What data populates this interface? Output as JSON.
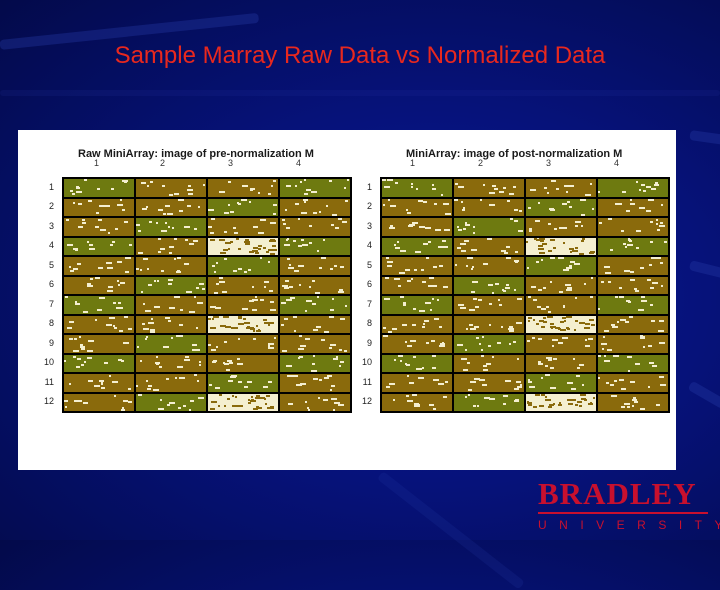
{
  "slide": {
    "title": "Sample Marray Raw Data vs Normalized Data"
  },
  "colors": {
    "background": "#06127a",
    "title": "#e8281e",
    "cell_base": "#8a6a0c",
    "cell_alt": "#6e7a10",
    "spot": "#f4efd0",
    "grid_line": "#000000",
    "logo": "#c8102e"
  },
  "plots": [
    {
      "title": "Raw MiniArray: image of pre-normalization M",
      "col_labels": [
        "1",
        "2",
        "3",
        "4"
      ],
      "row_labels": [
        "1",
        "2",
        "3",
        "4",
        "5",
        "6",
        "7",
        "8",
        "9",
        "10",
        "11",
        "12"
      ],
      "bright_blocks": [
        [
          3,
          2
        ],
        [
          7,
          2
        ],
        [
          11,
          2
        ]
      ]
    },
    {
      "title": "MiniArray: image of post-normalization M",
      "col_labels": [
        "1",
        "2",
        "3",
        "4"
      ],
      "row_labels": [
        "1",
        "2",
        "3",
        "4",
        "5",
        "6",
        "7",
        "8",
        "9",
        "10",
        "11",
        "12"
      ],
      "bright_blocks": [
        [
          3,
          2
        ],
        [
          7,
          2
        ],
        [
          11,
          2
        ]
      ]
    }
  ],
  "logo": {
    "name": "BRADLEY",
    "subtitle": "UNIVERSITY"
  }
}
